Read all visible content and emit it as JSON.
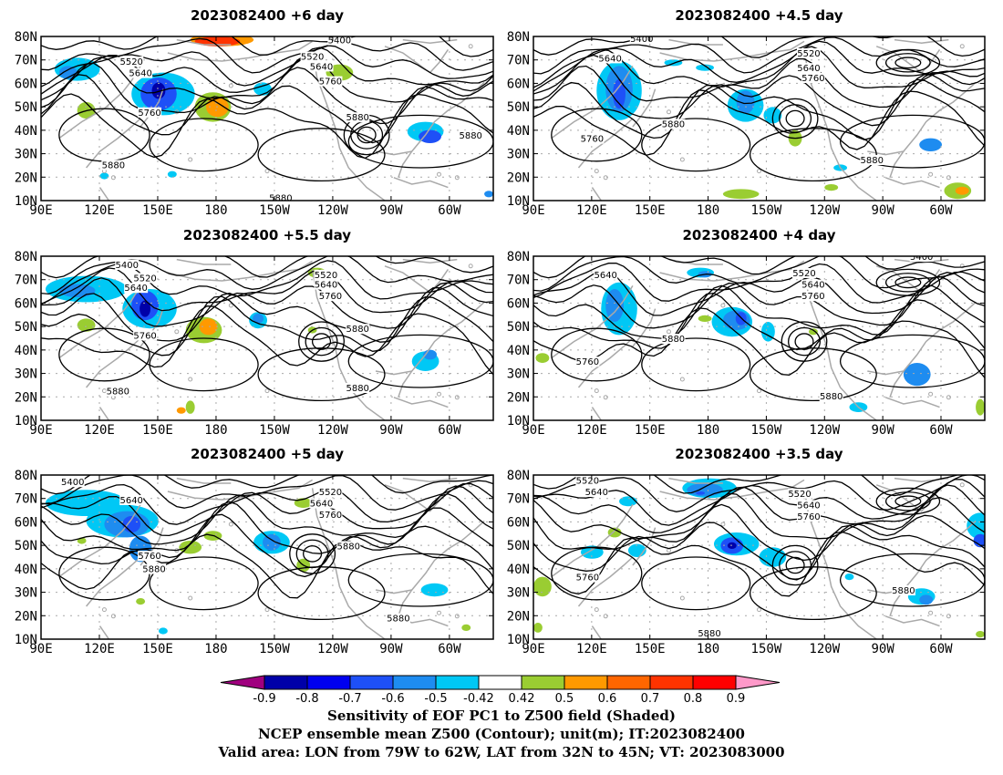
{
  "panels": [
    {
      "title": "2023082400 +6 day",
      "contour_labels": [
        "5400",
        "5520",
        "5640",
        "5760",
        "5880",
        "5520",
        "5640",
        "5760",
        "5880",
        "5880",
        "5880"
      ]
    },
    {
      "title": "2023082400 +4.5 day",
      "contour_labels": [
        "5400",
        "5640",
        "5880",
        "5760",
        "5520",
        "5640",
        "5760",
        "5880"
      ]
    },
    {
      "title": "2023082400 +5.5 day",
      "contour_labels": [
        "5400",
        "5520",
        "5640",
        "5760",
        "5520",
        "5640",
        "5760",
        "5880",
        "5880",
        "5880"
      ]
    },
    {
      "title": "2023082400 +4 day",
      "contour_labels": [
        "5640",
        "5880",
        "5760",
        "5400",
        "5520",
        "5640",
        "5760",
        "5880"
      ]
    },
    {
      "title": "2023082400 +5 day",
      "contour_labels": [
        "5400",
        "5640",
        "5760",
        "5880",
        "5520",
        "5640",
        "5760",
        "5880",
        "5880"
      ]
    },
    {
      "title": "2023082400 +3.5 day",
      "contour_labels": [
        "5520",
        "5640",
        "5760",
        "5520",
        "5640",
        "5760",
        "5880",
        "5880"
      ]
    }
  ],
  "axes": {
    "lat_labels": [
      "80N",
      "70N",
      "60N",
      "50N",
      "40N",
      "30N",
      "20N",
      "10N"
    ],
    "lon_labels": [
      "90E",
      "120E",
      "150E",
      "180",
      "150W",
      "120W",
      "90W",
      "60W"
    ]
  },
  "colorbar": {
    "colors": [
      "#a0007f",
      "#0000a8",
      "#0000ef",
      "#1e50f7",
      "#1e8cf0",
      "#00c8f5",
      "#ffffff",
      "#9acd32",
      "#ff9900",
      "#ff6600",
      "#ff3300",
      "#ff0000",
      "#ff99c9"
    ],
    "ticks": [
      "-0.9",
      "-0.8",
      "-0.7",
      "-0.6",
      "-0.5",
      "-0.42",
      "0.42",
      "0.5",
      "0.6",
      "0.7",
      "0.8",
      "0.9"
    ]
  },
  "caption": {
    "line1": "Sensitivity of EOF PC1 to Z500 field (Shaded)",
    "line2": "NCEP ensemble mean Z500 (Contour); unit(m); IT:2023082400",
    "line3": "Valid area: LON from 79W to 62W, LAT from 32N to 45N; VT: 2023083000"
  },
  "colors": {
    "coast": "#a9a9a9",
    "contour": "#000000",
    "grid": "#a9a9a9",
    "negative": "#1e8cf0",
    "positive": "#9acd32"
  }
}
